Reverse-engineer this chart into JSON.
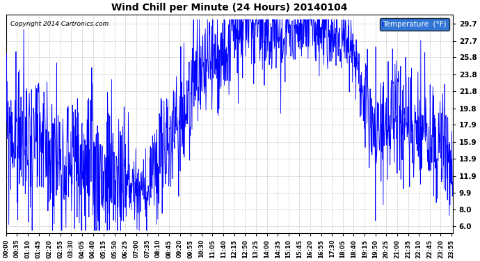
{
  "title": "Wind Chill per Minute (24 Hours) 20140104",
  "copyright_text": "Copyright 2014 Cartronics.com",
  "legend_label": "Temperature  (°F)",
  "line_color": "#0000FF",
  "background_color": "#FFFFFF",
  "grid_color": "#AAAAAA",
  "yticks": [
    6.0,
    8.0,
    9.9,
    11.9,
    13.9,
    15.9,
    17.9,
    19.8,
    21.8,
    23.8,
    25.8,
    27.7,
    29.7
  ],
  "ylim": [
    5.2,
    30.8
  ],
  "xtick_labels": [
    "00:00",
    "00:35",
    "01:10",
    "01:45",
    "02:20",
    "02:55",
    "03:30",
    "04:05",
    "04:40",
    "05:15",
    "05:50",
    "06:25",
    "07:00",
    "07:35",
    "08:10",
    "08:45",
    "09:20",
    "09:55",
    "10:30",
    "11:05",
    "11:40",
    "12:15",
    "12:50",
    "13:25",
    "14:00",
    "14:35",
    "15:10",
    "15:45",
    "16:20",
    "16:55",
    "17:30",
    "18:05",
    "18:40",
    "19:15",
    "19:50",
    "20:25",
    "21:00",
    "21:35",
    "22:10",
    "22:45",
    "23:20",
    "23:55"
  ],
  "num_minutes": 1440
}
